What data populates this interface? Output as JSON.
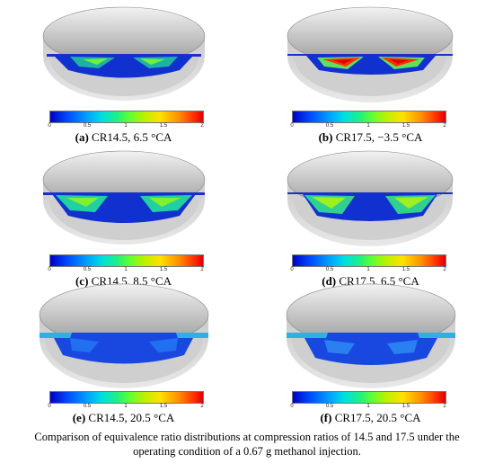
{
  "panels": [
    {
      "letter": "(a)",
      "label": "CR14.5, 6.5 °CA"
    },
    {
      "letter": "(b)",
      "label": "CR17.5, −3.5 °CA"
    },
    {
      "letter": "(c)",
      "label": "CR14.5, 8.5 °CA"
    },
    {
      "letter": "(d)",
      "label": "CR17.5, 6.5 °CA"
    },
    {
      "letter": "(e)",
      "label": "CR14.5, 20.5 °CA"
    },
    {
      "letter": "(f)",
      "label": "CR17.5, 20.5 °CA"
    }
  ],
  "colorbar": {
    "ticks": [
      "0",
      "0.5",
      "1",
      "1.5",
      "2"
    ],
    "min": 0,
    "max": 2,
    "colors": [
      "#0000c8",
      "#00a0ff",
      "#20f080",
      "#ffe000",
      "#e00000"
    ]
  },
  "caption": {
    "line1": "Comparison of equivalence ratio distributions at compression ratios of 14.5 and 17.5 under the",
    "line2": "operating condition of a 0.67 g methanol injection."
  }
}
